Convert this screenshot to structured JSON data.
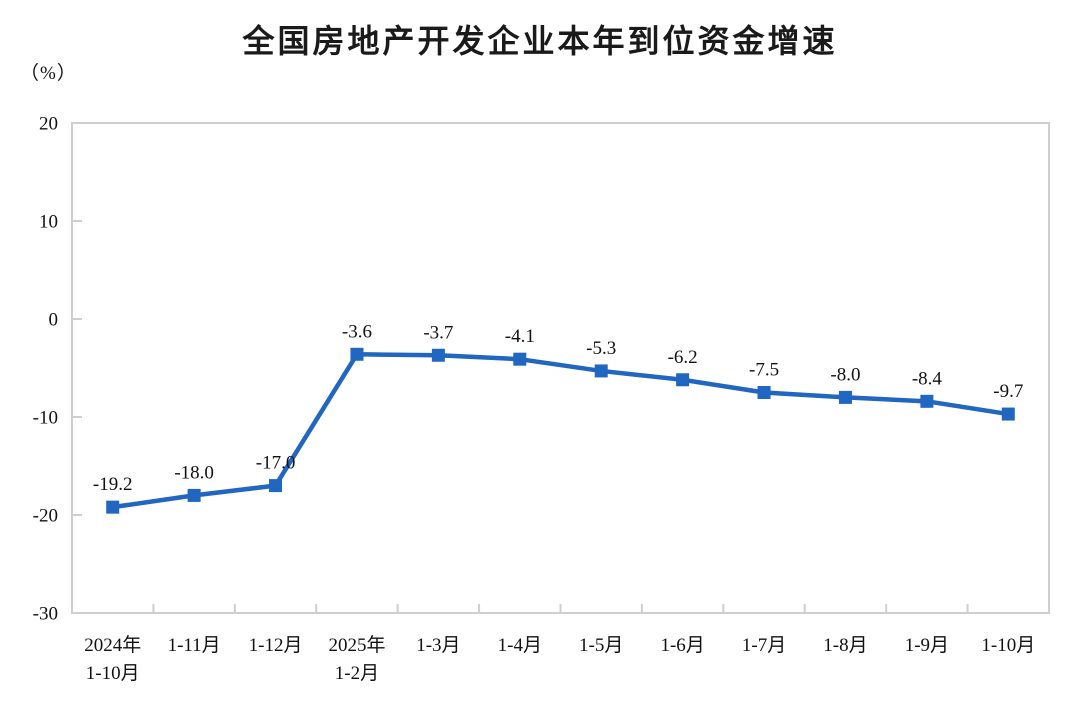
{
  "chart_data": {
    "type": "line",
    "title": "全国房地产开发企业本年到位资金增速",
    "ylabel": "（%）",
    "categories": [
      "2024年\n1-10月",
      "1-11月",
      "1-12月",
      "2025年\n1-2月",
      "1-3月",
      "1-4月",
      "1-5月",
      "1-6月",
      "1-7月",
      "1-8月",
      "1-9月",
      "1-10月"
    ],
    "values": [
      -19.2,
      -18.0,
      -17.0,
      -3.6,
      -3.7,
      -4.1,
      -5.3,
      -6.2,
      -7.5,
      -8.0,
      -8.4,
      -9.7
    ],
    "data_labels": [
      "-19.2",
      "-18.0",
      "-17.0",
      "-3.6",
      "-3.7",
      "-4.1",
      "-5.3",
      "-6.2",
      "-7.5",
      "-8.0",
      "-8.4",
      "-9.7"
    ],
    "ylim": [
      -30,
      20
    ],
    "yticks": [
      20,
      10,
      0,
      -10,
      -20,
      -30
    ],
    "grid": false,
    "legend": "none",
    "marker": "square",
    "colors": {
      "line": "#2166c0",
      "marker": "#2166c0",
      "axis": "#cfcfcf",
      "text": "#111111",
      "title": "#1a1a1a"
    }
  }
}
